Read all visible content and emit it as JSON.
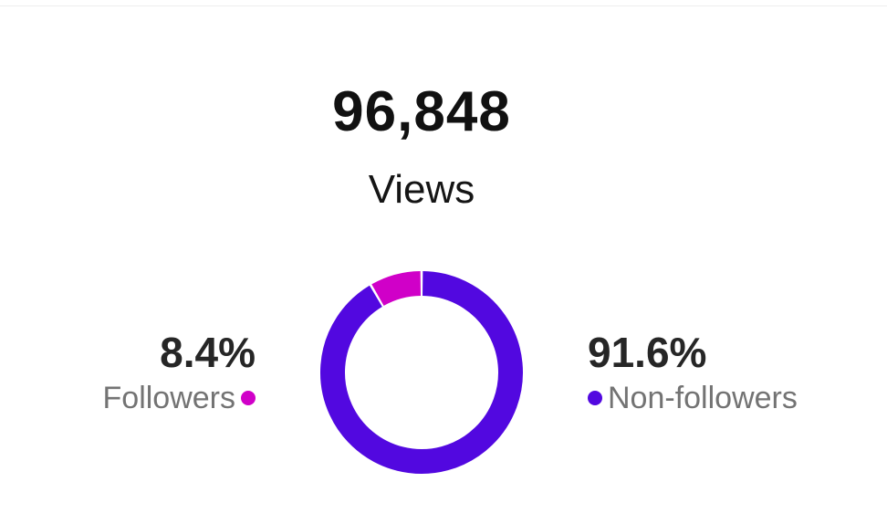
{
  "summary": {
    "total_value": "96,848",
    "total_label": "Views"
  },
  "legend": {
    "followers": {
      "percent_label": "8.4%",
      "name": "Followers",
      "color": "#d000c8"
    },
    "non_followers": {
      "percent_label": "91.6%",
      "name": "Non-followers",
      "color": "#5208e0"
    }
  },
  "chart_data": {
    "type": "pie",
    "categories": [
      "Followers",
      "Non-followers"
    ],
    "values": [
      8.4,
      91.6
    ],
    "colors": [
      "#d000c8",
      "#5208e0"
    ],
    "donut": true,
    "start_angle": "top",
    "legend": "sides"
  }
}
